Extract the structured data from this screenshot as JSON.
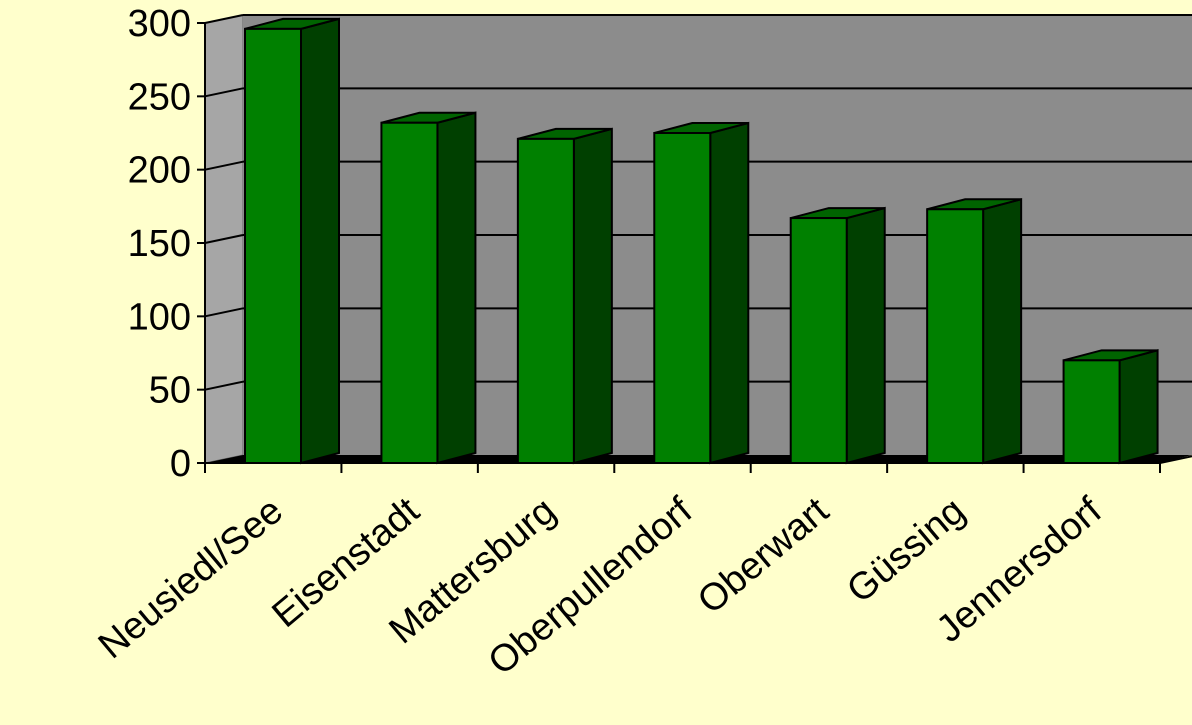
{
  "chart_data": {
    "type": "bar",
    "categories": [
      "Neusiedl/See",
      "Eisenstadt",
      "Mattersburg",
      "Oberpullendorf",
      "Oberwart",
      "Güssing",
      "Jennersdorf"
    ],
    "values": [
      296,
      232,
      221,
      225,
      167,
      173,
      70
    ],
    "title": "",
    "xlabel": "",
    "ylabel": "",
    "ylim": [
      0,
      300
    ],
    "yticks": [
      "0",
      "50",
      "100",
      "150",
      "200",
      "250",
      "300"
    ],
    "grid": true,
    "legend": "none",
    "colors": {
      "background": "#FFFFCC",
      "plot_back_wall": "#8C8C8C",
      "plot_side_wall": "#A6A6A6",
      "floor": "#000000",
      "bar_front": "#008000",
      "bar_side": "#004000",
      "bar_top": "#006400"
    }
  }
}
